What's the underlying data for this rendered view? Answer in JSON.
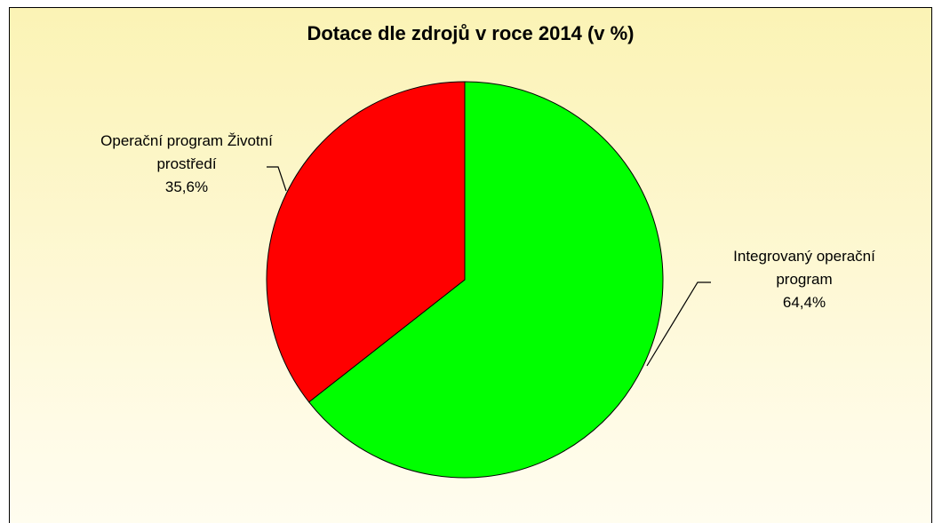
{
  "chart_data": {
    "type": "pie",
    "title": "Dotace dle zdrojů v roce 2014 (v %)",
    "categories": [
      "Integrovaný operační program",
      "Operační program Životní prostředí"
    ],
    "values": [
      64.4,
      35.6
    ],
    "value_labels": [
      "64,4%",
      "35,6%"
    ],
    "colors": [
      "#00ff00",
      "#ff0000"
    ]
  }
}
